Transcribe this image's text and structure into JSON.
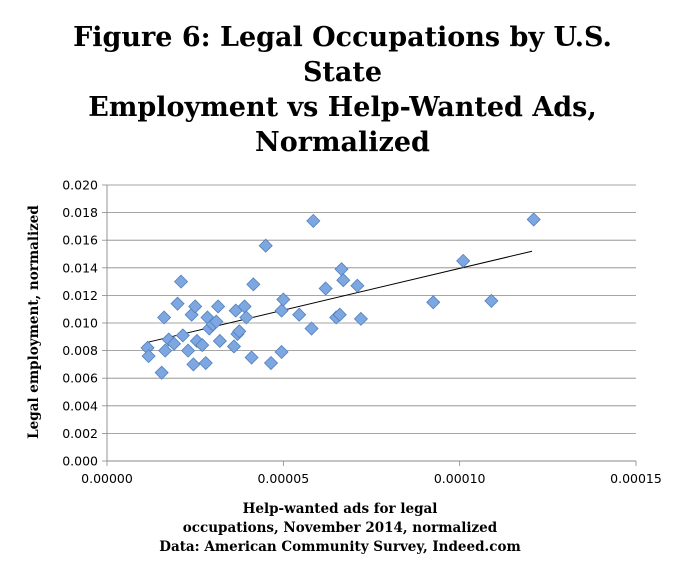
{
  "chart_data": {
    "type": "scatter",
    "title_lines": [
      "Figure 6: Legal Occupations by U.S.",
      "State",
      "Employment vs Help-Wanted Ads,",
      "Normalized"
    ],
    "xlabel_lines": [
      "Help-wanted ads for legal",
      "occupations, November 2014, normalized",
      "Data: American Community Survey, Indeed.com"
    ],
    "ylabel": "Legal employment, normalized",
    "xlim": [
      0,
      0.00015
    ],
    "ylim": [
      0,
      0.02
    ],
    "x_ticks": [
      "0.00000",
      "0.00005",
      "0.00010",
      "0.00015"
    ],
    "x_tick_values": [
      0,
      5e-05,
      0.0001,
      0.00015
    ],
    "y_ticks": [
      "0.000",
      "0.002",
      "0.004",
      "0.006",
      "0.008",
      "0.010",
      "0.012",
      "0.014",
      "0.016",
      "0.018",
      "0.020"
    ],
    "y_tick_values": [
      0,
      0.002,
      0.004,
      0.006,
      0.008,
      0.01,
      0.012,
      0.014,
      0.016,
      0.018,
      0.02
    ],
    "grid": "horizontal",
    "marker": "diamond",
    "marker_color": "#7ea6e0",
    "marker_edge_color": "#4f81bd",
    "trendline": {
      "type": "linear",
      "x": [
        1.15e-05,
        0.0001205
      ],
      "y": [
        0.0086,
        0.0152
      ],
      "color": "#000000"
    },
    "points": [
      [
        1.15e-05,
        0.0082
      ],
      [
        1.18e-05,
        0.0076
      ],
      [
        1.55e-05,
        0.0064
      ],
      [
        1.62e-05,
        0.0104
      ],
      [
        1.65e-05,
        0.008
      ],
      [
        1.75e-05,
        0.0088
      ],
      [
        1.9e-05,
        0.0085
      ],
      [
        2e-05,
        0.0114
      ],
      [
        2.1e-05,
        0.013
      ],
      [
        2.15e-05,
        0.0091
      ],
      [
        2.3e-05,
        0.008
      ],
      [
        2.4e-05,
        0.0106
      ],
      [
        2.45e-05,
        0.007
      ],
      [
        2.5e-05,
        0.0112
      ],
      [
        2.55e-05,
        0.0087
      ],
      [
        2.7e-05,
        0.0084
      ],
      [
        2.8e-05,
        0.0071
      ],
      [
        2.85e-05,
        0.0104
      ],
      [
        2.9e-05,
        0.0096
      ],
      [
        3e-05,
        0.0099
      ],
      [
        3.1e-05,
        0.0101
      ],
      [
        3.15e-05,
        0.0112
      ],
      [
        3.2e-05,
        0.0087
      ],
      [
        3.6e-05,
        0.0083
      ],
      [
        3.65e-05,
        0.0109
      ],
      [
        3.7e-05,
        0.0092
      ],
      [
        3.75e-05,
        0.0094
      ],
      [
        3.9e-05,
        0.0112
      ],
      [
        3.95e-05,
        0.0104
      ],
      [
        4.1e-05,
        0.0075
      ],
      [
        4.15e-05,
        0.0128
      ],
      [
        4.5e-05,
        0.0156
      ],
      [
        4.65e-05,
        0.0071
      ],
      [
        4.95e-05,
        0.0079
      ],
      [
        4.95e-05,
        0.0109
      ],
      [
        5e-05,
        0.0117
      ],
      [
        5.45e-05,
        0.0106
      ],
      [
        5.8e-05,
        0.0096
      ],
      [
        5.85e-05,
        0.0174
      ],
      [
        6.2e-05,
        0.0125
      ],
      [
        6.5e-05,
        0.0104
      ],
      [
        6.6e-05,
        0.0106
      ],
      [
        6.65e-05,
        0.0139
      ],
      [
        6.7e-05,
        0.0131
      ],
      [
        7.1e-05,
        0.0127
      ],
      [
        7.2e-05,
        0.0103
      ],
      [
        9.25e-05,
        0.0115
      ],
      [
        0.000101,
        0.0145
      ],
      [
        0.000109,
        0.0116
      ],
      [
        0.000121,
        0.0175
      ]
    ]
  }
}
